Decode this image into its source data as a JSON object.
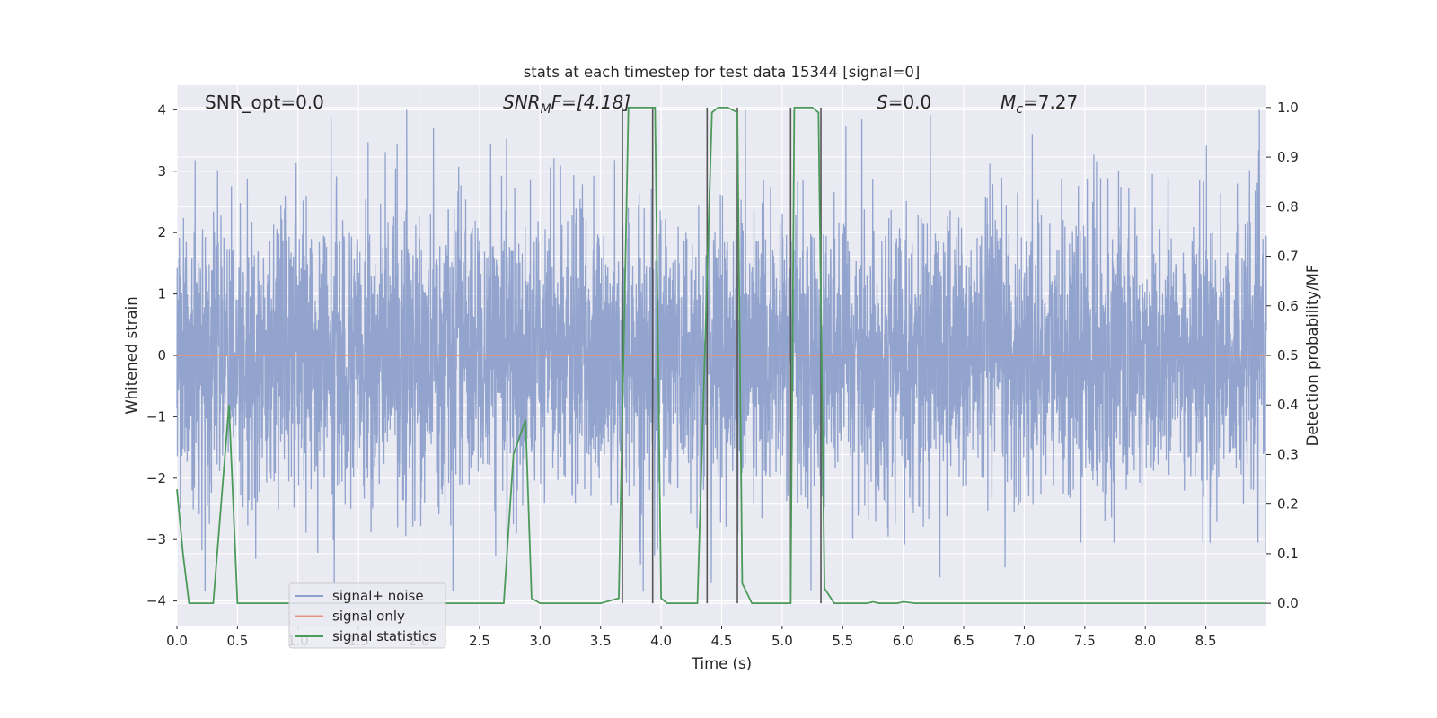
{
  "chart_data": {
    "type": "line",
    "title": "stats at each timestep for test data 15344 [signal=0]",
    "xlabel": "Time (s)",
    "ylabel_left": "Whitened strain",
    "ylabel_right": "Detection probability/MF",
    "xlim": [
      0.0,
      9.0
    ],
    "ylim_left": [
      -4.4,
      4.4
    ],
    "ylim_right": [
      -0.045,
      1.045
    ],
    "xticks": [
      "0.0",
      "0.5",
      "1.0",
      "1.5",
      "2.0",
      "2.5",
      "3.0",
      "3.5",
      "4.0",
      "4.5",
      "5.0",
      "5.5",
      "6.0",
      "6.5",
      "7.0",
      "7.5",
      "8.0",
      "8.5"
    ],
    "yticks_left": [
      "4",
      "3",
      "2",
      "1",
      "0",
      "−1",
      "−2",
      "−3",
      "−4"
    ],
    "yticks_right": [
      "1.0",
      "0.9",
      "0.8",
      "0.7",
      "0.6",
      "0.5",
      "0.4",
      "0.3",
      "0.2",
      "0.1",
      "0.0"
    ],
    "grid": true,
    "legend_placement": "lower-left",
    "annotations": {
      "snr_opt": "SNR_opt=0.0",
      "snr_mf_base": "SNR",
      "snr_mf_sub": "M",
      "snr_mf_rest": "F=[4.18]",
      "s_label": "S",
      "s_value": "=0.0",
      "mc_base": "M",
      "mc_sub": "c",
      "mc_value": "=7.27"
    },
    "series": [
      {
        "name": "signal+ noise",
        "color": "#8da0cb",
        "axis": "left",
        "description_values": "whitened strain noise, approx within [-3.8, 4.0]"
      },
      {
        "name": "signal only",
        "color": "#e5967c",
        "axis": "left",
        "x": [
          0.0,
          9.0
        ],
        "y": [
          0.0,
          0.0
        ]
      },
      {
        "name": "signal statistics",
        "color": "#4c9a5a",
        "axis": "right",
        "x": [
          0.0,
          0.05,
          0.1,
          0.2,
          0.3,
          0.43,
          0.5,
          0.6,
          1.0,
          2.0,
          2.7,
          2.78,
          2.88,
          2.93,
          3.0,
          3.5,
          3.65,
          3.73,
          3.78,
          3.95,
          4.0,
          4.05,
          4.3,
          4.42,
          4.47,
          4.55,
          4.63,
          4.67,
          4.75,
          4.8,
          5.0,
          5.07,
          5.1,
          5.13,
          5.25,
          5.3,
          5.35,
          5.43,
          5.5,
          5.7,
          5.75,
          5.8,
          5.95,
          6.0,
          6.1,
          6.5,
          7.0,
          9.0
        ],
        "y": [
          0.23,
          0.1,
          0.0,
          0.0,
          0.0,
          0.4,
          0.0,
          0.0,
          0.0,
          0.0,
          0.0,
          0.3,
          0.37,
          0.01,
          0.0,
          0.0,
          0.01,
          1.0,
          1.0,
          1.0,
          0.01,
          0.0,
          0.0,
          0.99,
          1.0,
          1.0,
          0.99,
          0.04,
          0.0,
          0.0,
          0.0,
          0.0,
          1.0,
          1.0,
          1.0,
          0.99,
          0.03,
          0.0,
          0.0,
          0.0,
          0.003,
          0.0,
          0.0,
          0.003,
          0.0,
          0.0,
          0.0,
          0.0
        ]
      }
    ],
    "vertical_markers": [
      3.68,
      3.93,
      4.38,
      4.63,
      5.07,
      5.32
    ],
    "marker_color": "#555555"
  },
  "colors": {
    "axes_bg": "#eaeaf2",
    "grid": "#ffffff",
    "text": "#262626"
  }
}
